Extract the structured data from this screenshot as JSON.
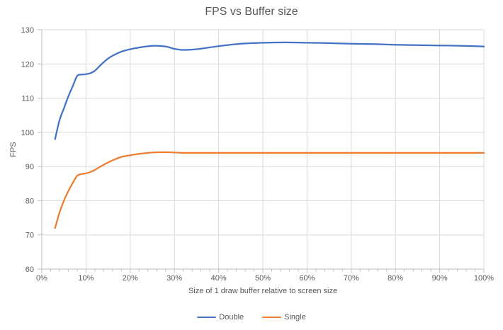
{
  "chart_data": {
    "type": "line",
    "title": "FPS vs Buffer size",
    "xlabel": "Size of 1 draw buffer relative to screen size",
    "ylabel": "FPS",
    "xlim": [
      0,
      100
    ],
    "ylim": [
      60,
      130
    ],
    "grid": true,
    "legend_position": "bottom-center",
    "line_style": "smooth",
    "x_ticks": [
      0,
      10,
      20,
      30,
      40,
      50,
      60,
      70,
      80,
      90,
      100
    ],
    "x_tick_labels": [
      "0%",
      "10%",
      "20%",
      "30%",
      "40%",
      "50%",
      "60%",
      "70%",
      "80%",
      "90%",
      "100%"
    ],
    "x_minor_tick_step": 2,
    "y_ticks": [
      60,
      70,
      80,
      90,
      100,
      110,
      120,
      130
    ],
    "y_tick_labels": [
      "60",
      "70",
      "80",
      "90",
      "100",
      "110",
      "120",
      "130"
    ],
    "x": [
      3,
      4,
      5,
      6,
      7,
      8,
      9,
      10,
      11,
      12,
      13,
      14,
      15,
      16,
      18,
      20,
      22,
      25,
      28,
      30,
      32,
      35,
      40,
      45,
      50,
      55,
      60,
      65,
      70,
      75,
      80,
      85,
      90,
      95,
      100
    ],
    "series": [
      {
        "name": "Double",
        "color": "#4472C4",
        "values": [
          98,
          103.5,
          107,
          110.5,
          113.5,
          116.5,
          116.9,
          117,
          117.3,
          118,
          119.3,
          120.5,
          121.6,
          122.4,
          123.6,
          124.3,
          124.8,
          125.3,
          125.1,
          124.4,
          124.1,
          124.3,
          125.2,
          125.9,
          126.2,
          126.3,
          126.2,
          126.1,
          125.9,
          125.8,
          125.6,
          125.5,
          125.4,
          125.3,
          125.1
        ]
      },
      {
        "name": "Single",
        "color": "#ED7D31",
        "values": [
          72,
          76.5,
          80,
          82.8,
          85.2,
          87.3,
          87.8,
          88,
          88.4,
          89,
          89.8,
          90.5,
          91.2,
          91.8,
          92.8,
          93.3,
          93.7,
          94.1,
          94.2,
          94.1,
          94,
          94,
          94,
          94,
          94,
          94,
          94,
          94,
          94,
          94,
          94,
          94,
          94,
          94,
          94
        ]
      }
    ],
    "colors": {
      "gridline": "#D9D9D9",
      "axis_line": "#BFBFBF",
      "tick_text": "#595959",
      "title_text": "#595959",
      "background": "#FFFFFF"
    }
  }
}
